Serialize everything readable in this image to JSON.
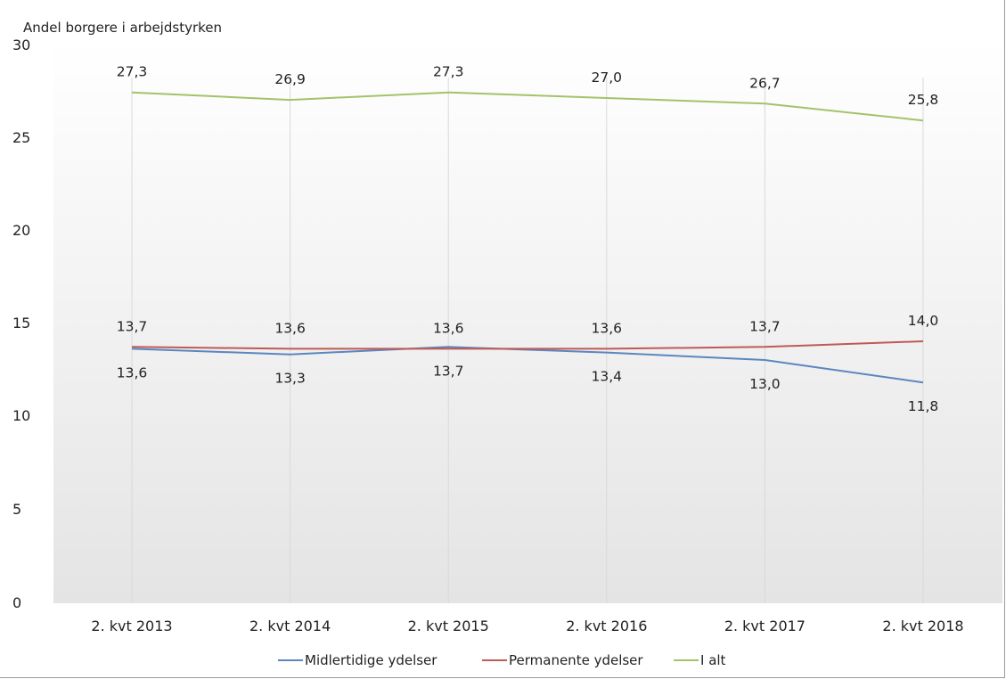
{
  "chart_data": {
    "type": "line",
    "title": "",
    "ylabel": "Andel borgere i arbejdstyrken",
    "xlabel": "",
    "ylim": [
      0,
      30
    ],
    "yticks": [
      "0",
      "5",
      "10",
      "15",
      "20",
      "25",
      "30"
    ],
    "categories": [
      "2. kvt 2013",
      "2. kvt 2014",
      "2. kvt 2015",
      "2. kvt 2016",
      "2. kvt 2017",
      "2. kvt 2018"
    ],
    "series": [
      {
        "name": "Midlertidige ydelser",
        "color": "#5a87bf",
        "values": [
          13.6,
          13.3,
          13.7,
          13.4,
          13.0,
          11.8
        ],
        "labels": [
          "13,6",
          "13,3",
          "13,7",
          "13,4",
          "13,0",
          "11,8"
        ],
        "label_position": "below"
      },
      {
        "name": "Permanente ydelser",
        "color": "#bf5a56",
        "values": [
          13.7,
          13.6,
          13.6,
          13.6,
          13.7,
          14.0
        ],
        "labels": [
          "13,7",
          "13,6",
          "13,6",
          "13,6",
          "13,7",
          "14,0"
        ],
        "label_position": "above"
      },
      {
        "name": "I alt",
        "color": "#a4c26a",
        "values": [
          27.3,
          26.9,
          27.3,
          27.0,
          26.7,
          25.8
        ],
        "labels": [
          "27,3",
          "26,9",
          "27,3",
          "27,0",
          "26,7",
          "25,8"
        ],
        "label_position": "above"
      }
    ],
    "grid": "vertical",
    "legend": "bottom"
  }
}
